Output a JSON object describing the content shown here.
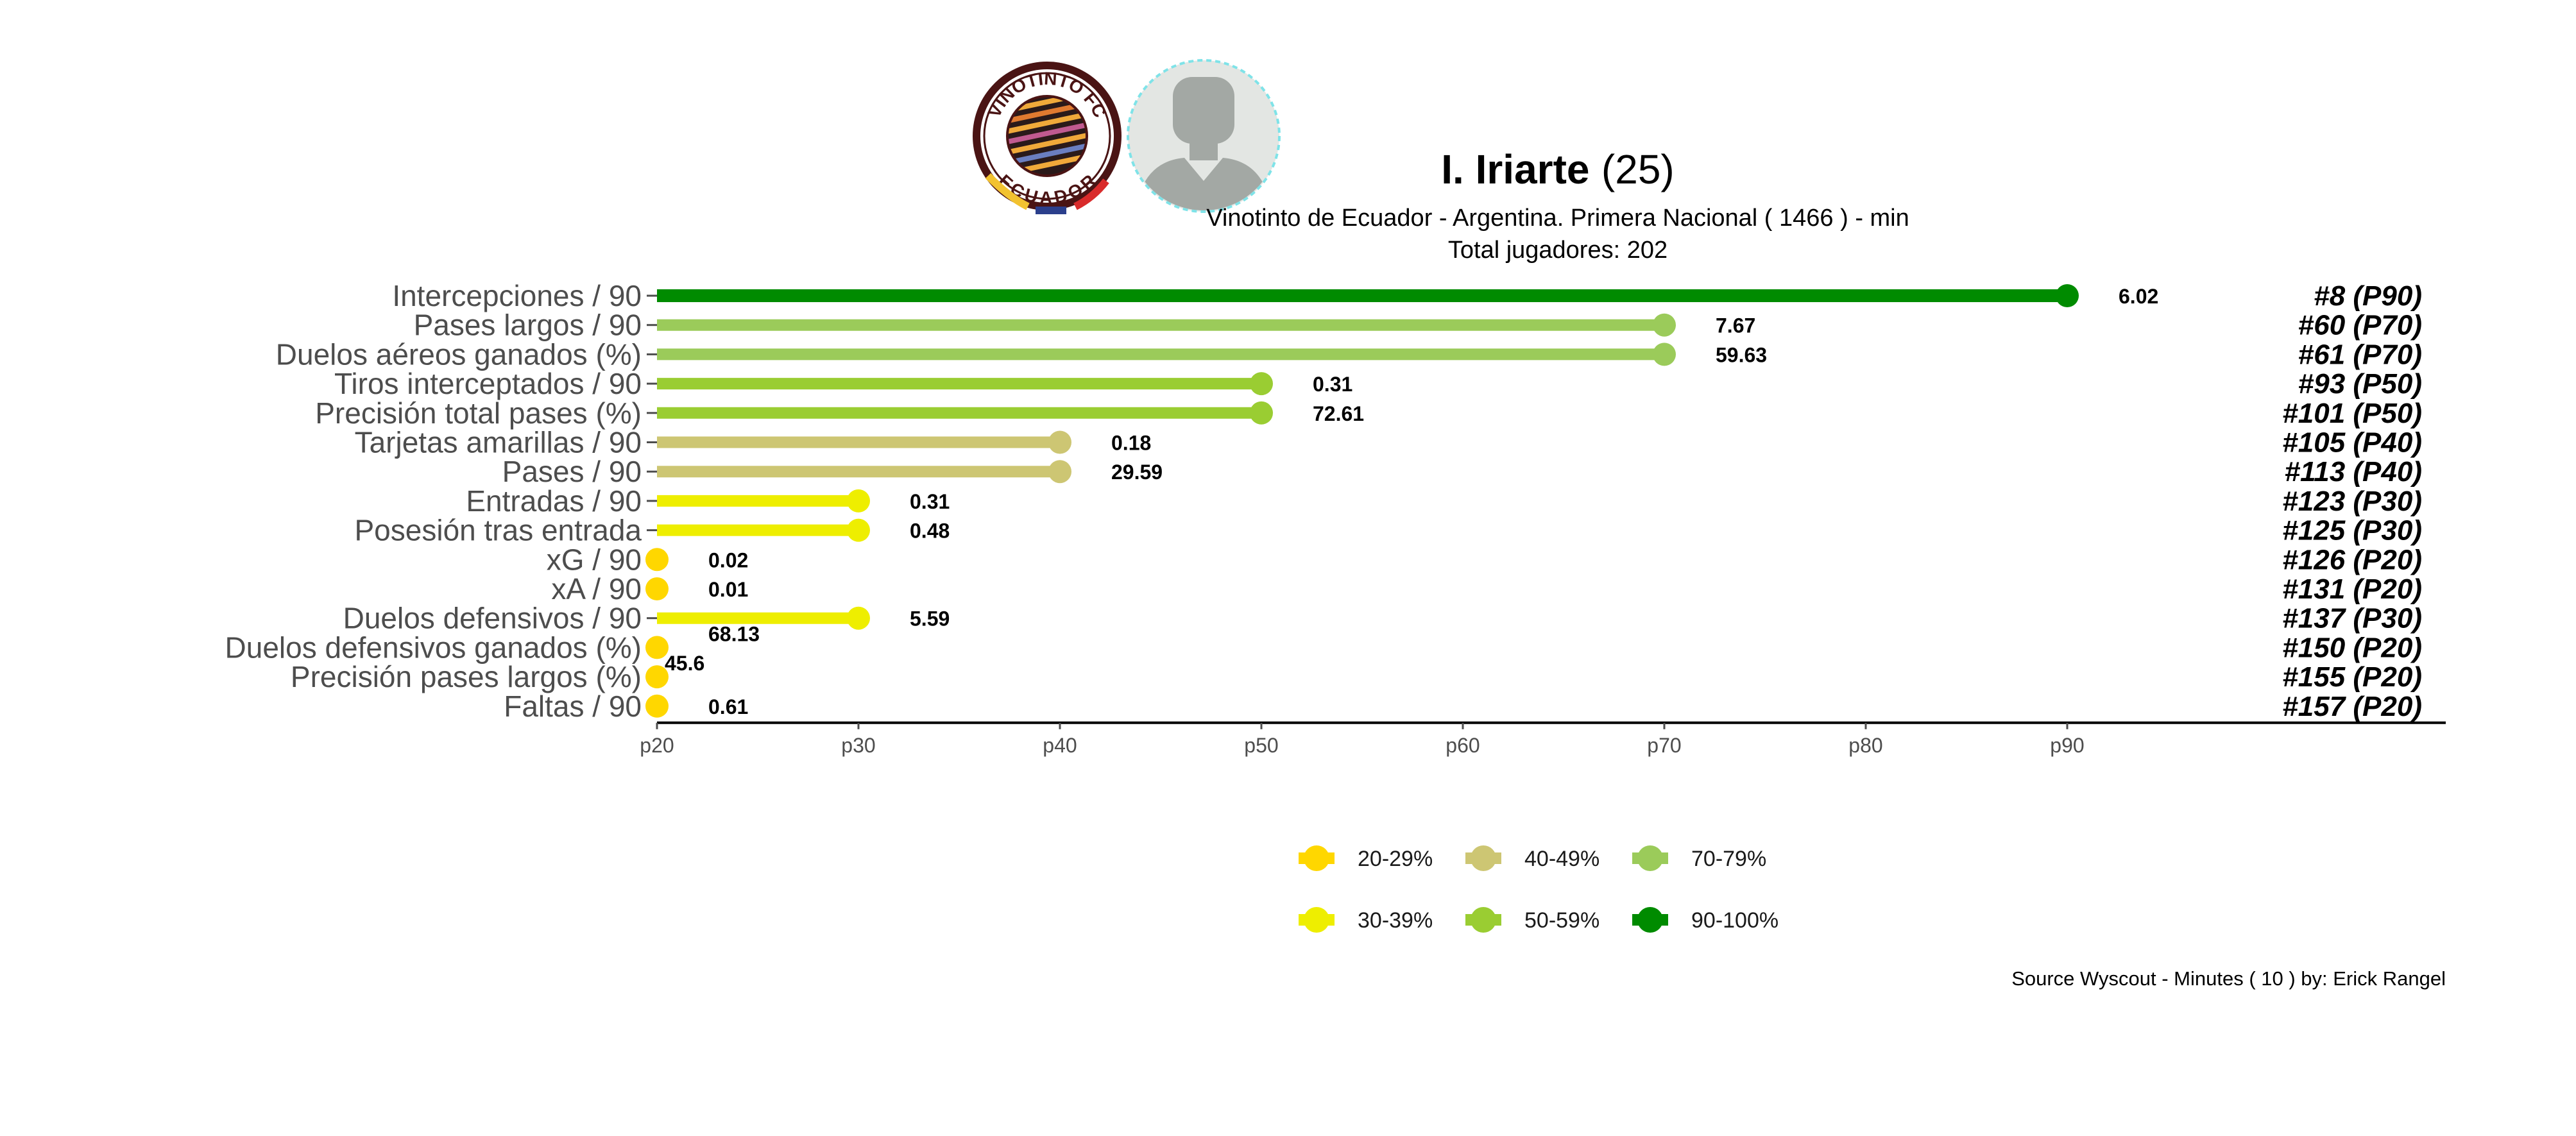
{
  "header": {
    "player_name": "I. Iriarte",
    "player_age": "(25)",
    "subtitle_line1": "Vinotinto de Ecuador  -  Argentina. Primera Nacional  ( 1466 ) - min",
    "subtitle_line2": "Total jugadores:  202",
    "logo_text_top": "VINOTINTO FC",
    "logo_text_bottom": "ECUADOR"
  },
  "caption": "Source Wyscout - Minutes ( 10 ) by: Erick Rangel",
  "colors": {
    "p20": "#FFD700",
    "p30": "#EEEE00",
    "p40": "#CDC673",
    "p50": "#9ACD32",
    "p70": "#9BCB5A",
    "p90": "#008B00",
    "logo_ring": "#4a1414"
  },
  "chart_data": {
    "type": "bar",
    "orientation": "horizontal-lollipop",
    "xlim": [
      "p20",
      "p90"
    ],
    "ticks": [
      "p20",
      "p30",
      "p40",
      "p50",
      "p60",
      "p70",
      "p80",
      "p90"
    ],
    "rows": [
      {
        "metric": "Intercepciones / 90",
        "percentile": 90,
        "value": "6.02",
        "rank": "#8 (P90)",
        "band": "p90"
      },
      {
        "metric": "Pases largos / 90",
        "percentile": 70,
        "value": "7.67",
        "rank": "#60 (P70)",
        "band": "p70"
      },
      {
        "metric": "Duelos aéreos ganados (%)",
        "percentile": 70,
        "value": "59.63",
        "rank": "#61 (P70)",
        "band": "p70"
      },
      {
        "metric": "Tiros interceptados / 90",
        "percentile": 50,
        "value": "0.31",
        "rank": "#93 (P50)",
        "band": "p50"
      },
      {
        "metric": "Precisión total pases (%)",
        "percentile": 50,
        "value": "72.61",
        "rank": "#101 (P50)",
        "band": "p50"
      },
      {
        "metric": "Tarjetas amarillas / 90",
        "percentile": 40,
        "value": "0.18",
        "rank": "#105 (P40)",
        "band": "p40"
      },
      {
        "metric": "Pases / 90",
        "percentile": 40,
        "value": "29.59",
        "rank": "#113 (P40)",
        "band": "p40"
      },
      {
        "metric": "Entradas / 90",
        "percentile": 30,
        "value": "0.31",
        "rank": "#123 (P30)",
        "band": "p30"
      },
      {
        "metric": "Posesión tras entrada",
        "percentile": 30,
        "value": "0.48",
        "rank": "#125 (P30)",
        "band": "p30"
      },
      {
        "metric": "xG / 90",
        "percentile": 20,
        "value": "0.02",
        "rank": "#126 (P20)",
        "band": "p20"
      },
      {
        "metric": "xA / 90",
        "percentile": 20,
        "value": "0.01",
        "rank": "#131 (P20)",
        "band": "p20"
      },
      {
        "metric": "Duelos defensivos / 90",
        "percentile": 30,
        "value": "5.59",
        "rank": "#137 (P30)",
        "band": "p30"
      },
      {
        "metric": "Duelos defensivos ganados (%)",
        "percentile": 20,
        "value": "68.13",
        "rank": "#150 (P20)",
        "band": "p20"
      },
      {
        "metric": "Precisión pases largos (%)",
        "percentile": 20,
        "value": "45.6",
        "rank": "#155 (P20)",
        "band": "p20"
      },
      {
        "metric": "Faltas / 90",
        "percentile": 20,
        "value": "0.61",
        "rank": "#157 (P20)",
        "band": "p20"
      }
    ],
    "legend": [
      {
        "label": "20-29%",
        "band": "p20"
      },
      {
        "label": "40-49%",
        "band": "p40"
      },
      {
        "label": "70-79%",
        "band": "p70"
      },
      {
        "label": "30-39%",
        "band": "p30"
      },
      {
        "label": "50-59%",
        "band": "p50"
      },
      {
        "label": "90-100%",
        "band": "p90"
      }
    ]
  }
}
